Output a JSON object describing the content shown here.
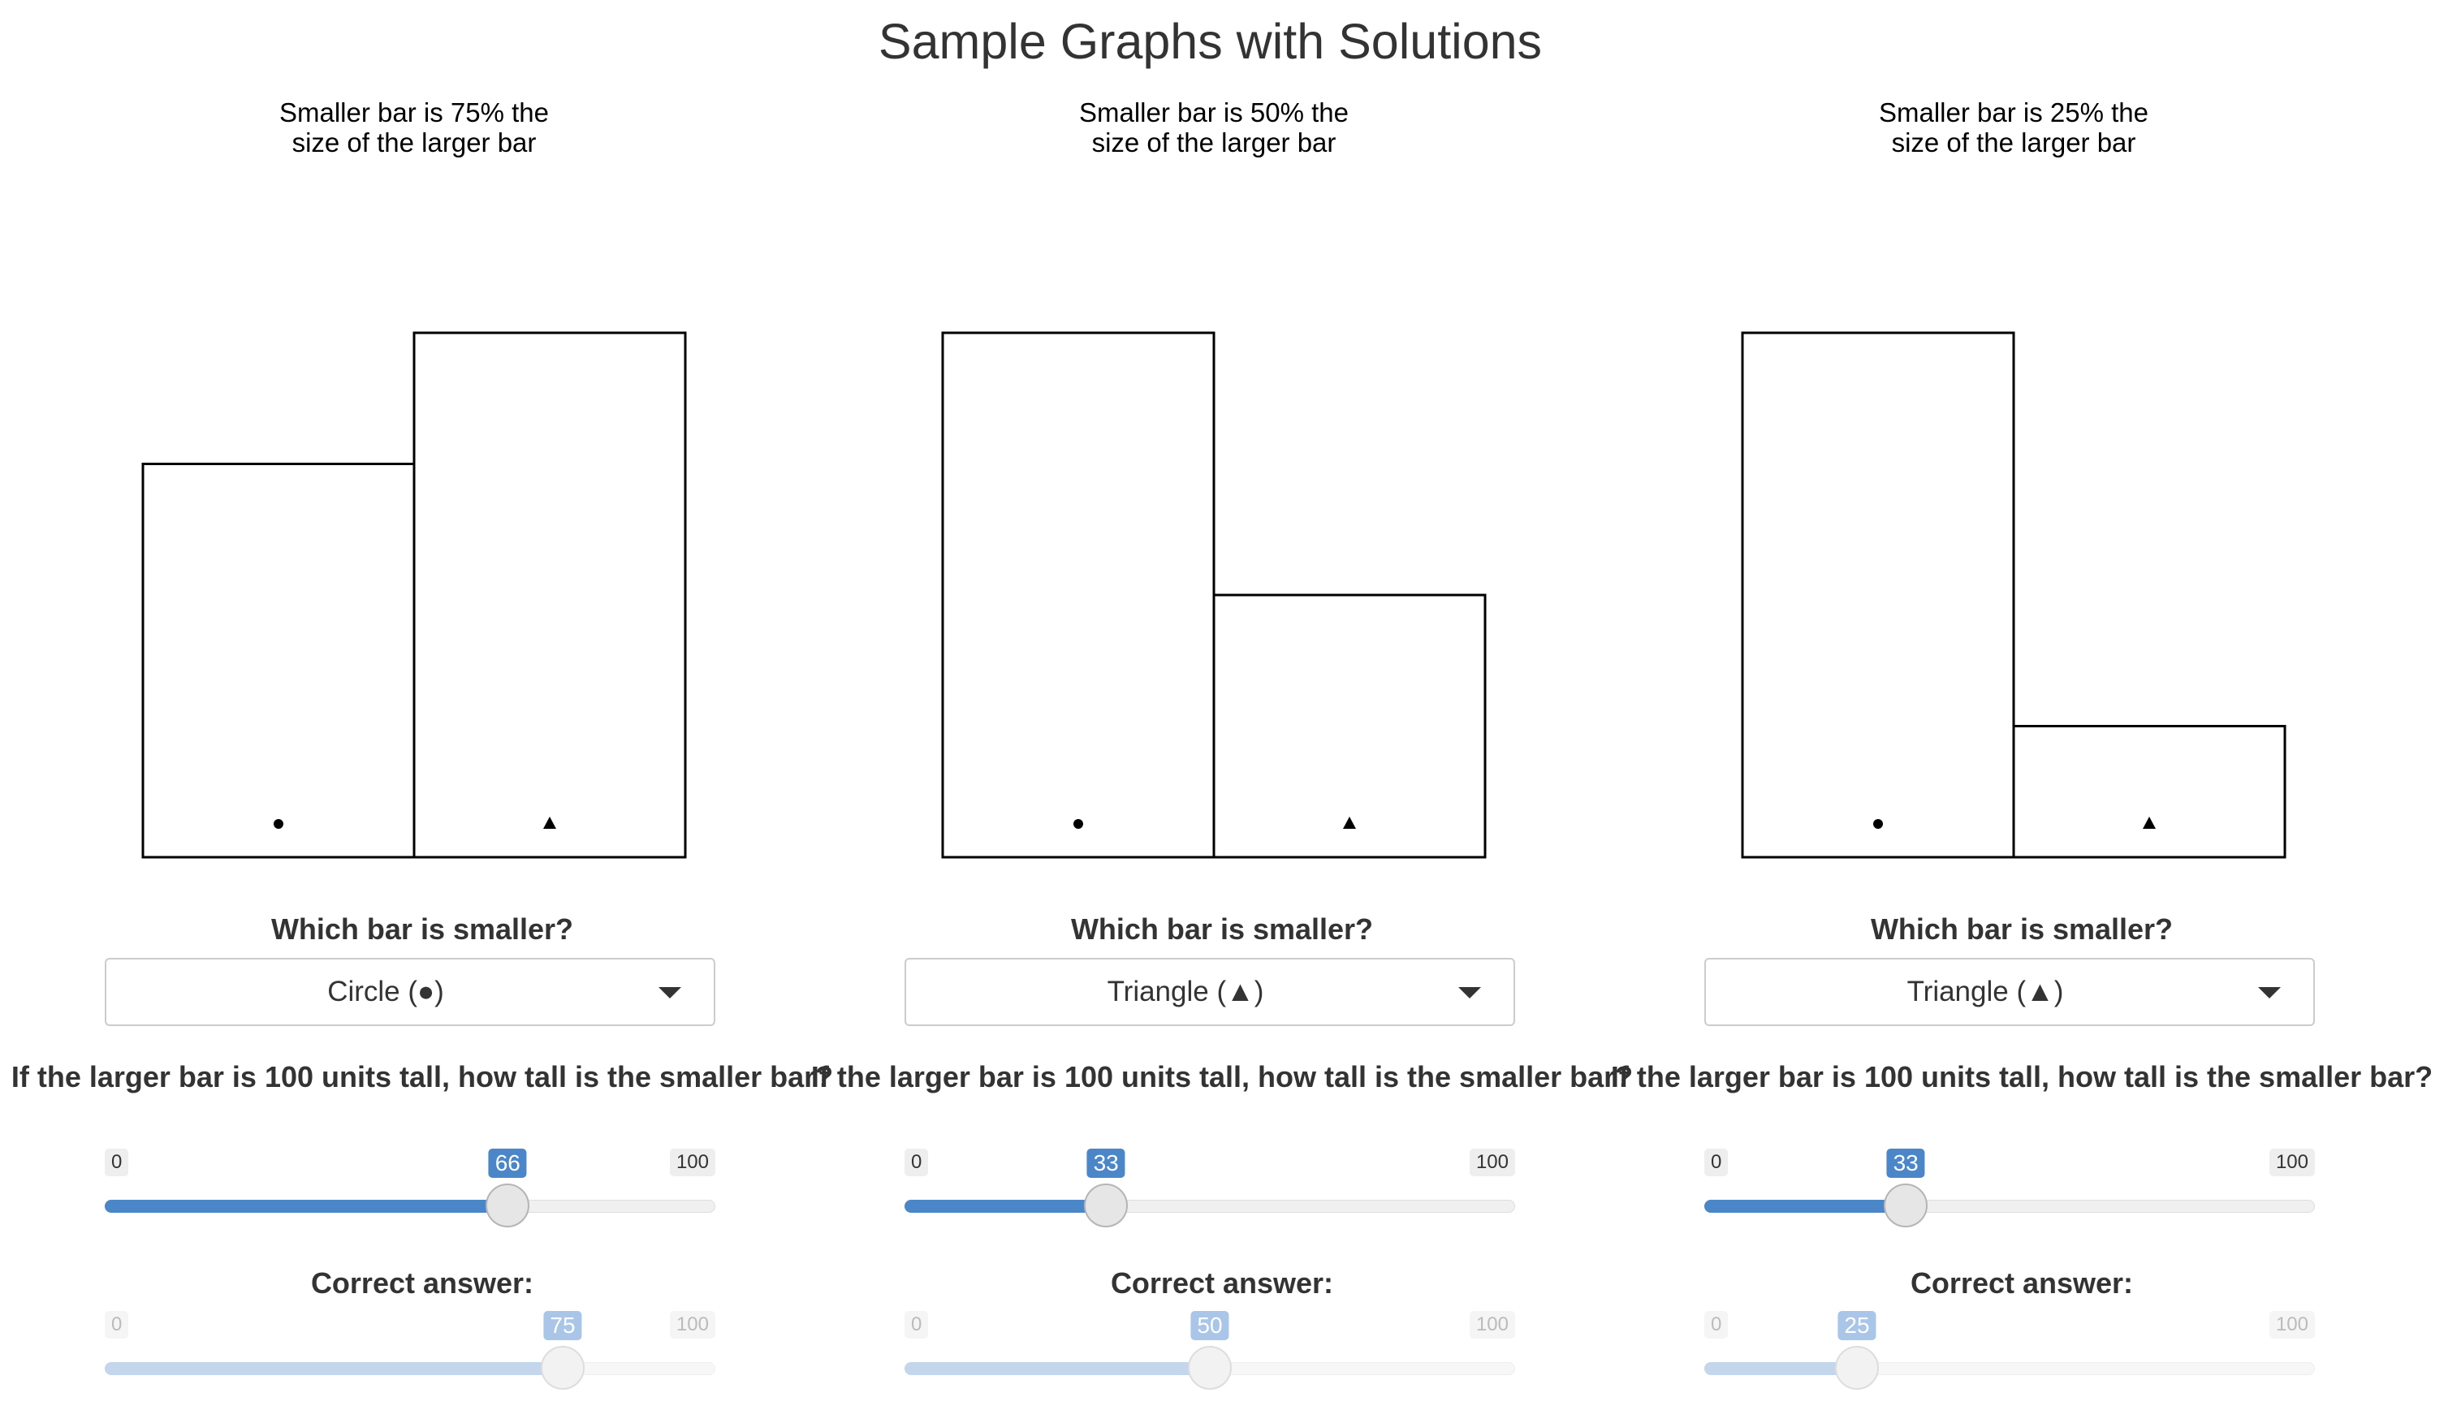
{
  "page_title": "Sample Graphs with Solutions",
  "colors": {
    "accent": "#4a86c8",
    "accent_disabled": "#a9c6e8"
  },
  "panels": [
    {
      "subtitle_line1": "Smaller bar is 75% the",
      "subtitle_line2": "size of the larger bar",
      "question1": "Which bar is smaller?",
      "selected": "Circle (●)",
      "question2": "If the larger bar is 100 units tall, how tall is the smaller bar?",
      "slider_min": "0",
      "slider_max": "100",
      "answer": 66,
      "answer_label": "66",
      "correct_label": "Correct answer:",
      "correct": 75,
      "correct_text": "75"
    },
    {
      "subtitle_line1": "Smaller bar is 50% the",
      "subtitle_line2": "size of the larger bar",
      "question1": "Which bar is smaller?",
      "selected": "Triangle (▲)",
      "question2": "If the larger bar is 100 units tall, how tall is the smaller bar?",
      "slider_min": "0",
      "slider_max": "100",
      "answer": 33,
      "answer_label": "33",
      "correct_label": "Correct answer:",
      "correct": 50,
      "correct_text": "50"
    },
    {
      "subtitle_line1": "Smaller bar is 25% the",
      "subtitle_line2": "size of the larger bar",
      "question1": "Which bar is smaller?",
      "selected": "Triangle (▲)",
      "question2": "If the larger bar is 100 units tall, how tall is the smaller bar?",
      "slider_min": "0",
      "slider_max": "100",
      "answer": 33,
      "answer_label": "33",
      "correct_label": "Correct answer:",
      "correct": 25,
      "correct_text": "25"
    }
  ],
  "chart_data": [
    {
      "type": "bar",
      "title": "Smaller bar is 75% the size of the larger bar",
      "categories": [
        "circle",
        "triangle"
      ],
      "values": [
        75,
        100
      ],
      "ylim": [
        0,
        100
      ]
    },
    {
      "type": "bar",
      "title": "Smaller bar is 50% the size of the larger bar",
      "categories": [
        "circle",
        "triangle"
      ],
      "values": [
        100,
        50
      ],
      "ylim": [
        0,
        100
      ]
    },
    {
      "type": "bar",
      "title": "Smaller bar is 25% the size of the larger bar",
      "categories": [
        "circle",
        "triangle"
      ],
      "values": [
        100,
        25
      ],
      "ylim": [
        0,
        100
      ]
    }
  ]
}
